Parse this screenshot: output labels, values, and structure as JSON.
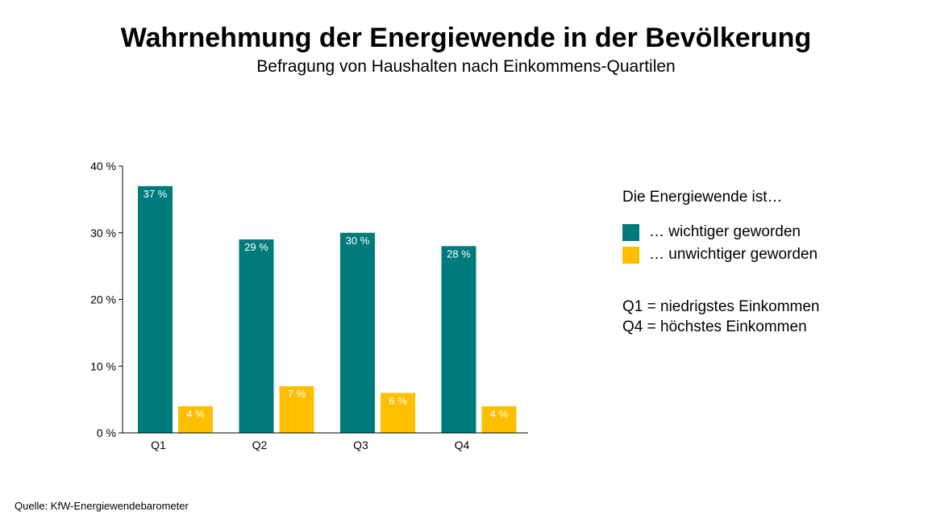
{
  "title": "Wahrnehmung der Energiewende in der Bevölkerung",
  "subtitle": "Befragung von Haushalten nach Einkommens-Quartilen",
  "source": "Quelle: KfW-Energiewendebarometer",
  "legend": {
    "title": "Die Energiewende ist…",
    "notes": [
      "Q1 = niedrigstes Einkommen",
      "Q4 = höchstes Einkommen"
    ]
  },
  "colors": {
    "teal": "#007b7b",
    "yellow": "#fdbf00"
  },
  "chart_data": {
    "type": "bar",
    "title": "Wahrnehmung der Energiewende in der Bevölkerung",
    "subtitle": "Befragung von Haushalten nach Einkommens-Quartilen",
    "categories": [
      "Q1",
      "Q2",
      "Q3",
      "Q4"
    ],
    "series": [
      {
        "name": "… wichtiger geworden",
        "values": [
          37,
          29,
          30,
          28
        ],
        "labels": [
          "37 %",
          "29 %",
          "30 %",
          "28 %"
        ],
        "color": "#007b7b"
      },
      {
        "name": "… unwichtiger geworden",
        "values": [
          4,
          7,
          6,
          4
        ],
        "labels": [
          "4 %",
          "7 %",
          "6 %",
          "4 %"
        ],
        "color": "#fdbf00"
      }
    ],
    "yticks": [
      0,
      10,
      20,
      30,
      40
    ],
    "ytick_labels": [
      "0 %",
      "10 %",
      "20 %",
      "30 %",
      "40 %"
    ],
    "ylim": [
      0,
      40
    ],
    "xlabel": "",
    "ylabel": "",
    "grid": false,
    "legend_position": "right"
  }
}
